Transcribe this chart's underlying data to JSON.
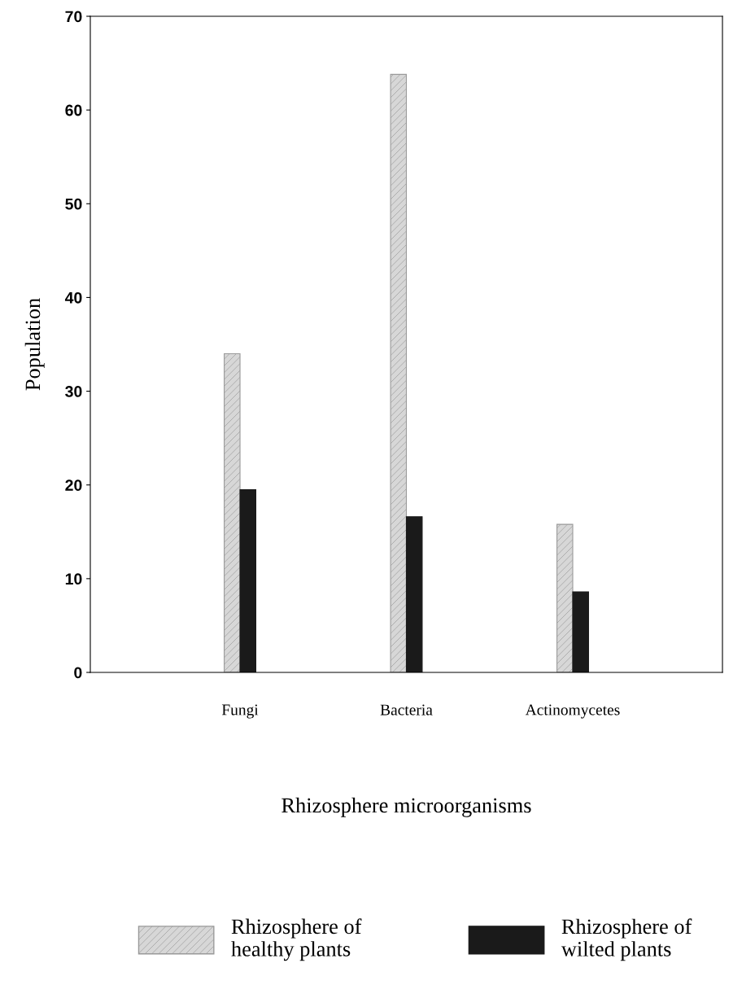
{
  "chart_data": {
    "type": "bar",
    "xlabel": "Rhizosphere microorganisms",
    "ylabel": "Population",
    "categories": [
      "Fungi",
      "Bacteria",
      "Actinomycetes"
    ],
    "series": [
      {
        "name": "Rhizosphere of\nhealthy plants",
        "color": "#9a9a9a",
        "values": [
          34,
          63.8,
          15.8
        ]
      },
      {
        "name": "Rhizosphere of\nwilted plants",
        "color": "#1a1a1a",
        "values": [
          19.5,
          16.6,
          8.6
        ]
      }
    ],
    "ylim": [
      0,
      70
    ],
    "yticks": [
      0,
      10,
      20,
      30,
      40,
      50,
      60,
      70
    ],
    "grid": false,
    "legend": "bottom"
  }
}
